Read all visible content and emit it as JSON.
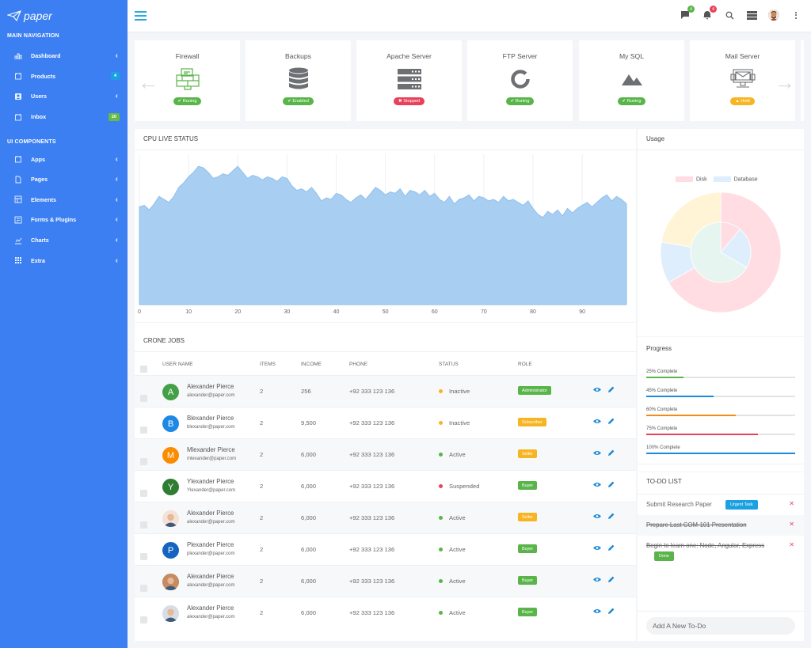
{
  "app": {
    "brand": "paper"
  },
  "sidebar": {
    "main_heading": "MAIN NAVIGATION",
    "main_items": [
      {
        "label": "Dashboard",
        "icon": "dashboard-icon"
      },
      {
        "label": "Products",
        "icon": "products-icon",
        "badge": "4"
      },
      {
        "label": "Users",
        "icon": "users-icon"
      },
      {
        "label": "Inbox",
        "icon": "inbox-icon",
        "badge": "20"
      }
    ],
    "ui_heading": "UI COMPONENTS",
    "ui_items": [
      {
        "label": "Apps",
        "icon": "apps-icon"
      },
      {
        "label": "Pages",
        "icon": "pages-icon"
      },
      {
        "label": "Elements",
        "icon": "elements-icon"
      },
      {
        "label": "Forms & Plugins",
        "icon": "forms-icon"
      },
      {
        "label": "Charts",
        "icon": "charts-icon"
      },
      {
        "label": "Extra",
        "icon": "extra-icon"
      }
    ]
  },
  "topbar": {
    "messages_count": "4",
    "notifications_count": "4"
  },
  "servers": [
    {
      "name": "Firewall",
      "status": "Runing",
      "status_color": "#59b549",
      "icon": "firewall-icon"
    },
    {
      "name": "Backups",
      "status": "Enabled",
      "status_color": "#59b549",
      "icon": "database-icon"
    },
    {
      "name": "Apache Server",
      "status": "Stopped",
      "status_color": "#e8425a",
      "icon": "server-icon"
    },
    {
      "name": "FTP Server",
      "status": "Runing",
      "status_color": "#59b549",
      "icon": "ring-icon"
    },
    {
      "name": "My SQL",
      "status": "Runing",
      "status_color": "#59b549",
      "icon": "mountain-icon"
    },
    {
      "name": "Mail Server",
      "status": "Hold",
      "status_color": "#f7b524",
      "icon": "mail-server-icon"
    }
  ],
  "cpu": {
    "title": "CPU LIVE STATUS"
  },
  "chart_data": [
    {
      "type": "area",
      "title": "CPU LIVE STATUS",
      "xlim": [
        0,
        99
      ],
      "xticks": [
        0,
        10,
        20,
        30,
        40,
        50,
        60,
        70,
        80,
        90
      ],
      "color": "#a8cff2",
      "x": [
        0,
        1,
        2,
        3,
        4,
        5,
        6,
        7,
        8,
        9,
        10,
        11,
        12,
        13,
        14,
        15,
        16,
        17,
        18,
        19,
        20,
        21,
        22,
        23,
        24,
        25,
        26,
        27,
        28,
        29,
        30,
        31,
        32,
        33,
        34,
        35,
        36,
        37,
        38,
        39,
        40,
        41,
        42,
        43,
        44,
        45,
        46,
        47,
        48,
        49,
        50,
        51,
        52,
        53,
        54,
        55,
        56,
        57,
        58,
        59,
        60,
        61,
        62,
        63,
        64,
        65,
        66,
        67,
        68,
        69,
        70,
        71,
        72,
        73,
        74,
        75,
        76,
        77,
        78,
        79,
        80,
        81,
        82,
        83,
        84,
        85,
        86,
        87,
        88,
        89,
        90,
        91,
        92,
        93,
        94,
        95,
        96,
        97,
        98,
        99
      ],
      "y": [
        65,
        66,
        63,
        67,
        72,
        70,
        68,
        72,
        78,
        81,
        85,
        88,
        92,
        91,
        88,
        84,
        85,
        87,
        86,
        89,
        92,
        88,
        84,
        86,
        85,
        83,
        85,
        84,
        82,
        85,
        84,
        79,
        76,
        77,
        75,
        78,
        74,
        69,
        71,
        70,
        74,
        73,
        70,
        68,
        71,
        73,
        70,
        74,
        78,
        76,
        73,
        75,
        74,
        77,
        72,
        76,
        75,
        73,
        76,
        72,
        74,
        70,
        68,
        72,
        67,
        70,
        71,
        73,
        69,
        72,
        71,
        69,
        70,
        68,
        72,
        69,
        70,
        68,
        66,
        69,
        64,
        60,
        58,
        62,
        60,
        63,
        59,
        64,
        61,
        64,
        66,
        68,
        65,
        68,
        71,
        73,
        69,
        72,
        70,
        67
      ]
    },
    {
      "type": "pie",
      "series": [
        {
          "name": "Disk",
          "values": [
            300,
            50,
            100
          ],
          "colors": [
            "#ffdde3",
            "#deeefc",
            "#fff5d6"
          ]
        },
        {
          "name": "Database",
          "values": [
            50,
            100,
            300
          ],
          "colors": [
            "#ffdde3",
            "#deeefc",
            "#e6f5ef"
          ]
        }
      ],
      "legend": "top"
    }
  ],
  "table": {
    "title": "CRONE JOBS",
    "columns": [
      "USER NAME",
      "ITEMS",
      "INCOME",
      "PHONE",
      "STATUS",
      "ROLE"
    ],
    "rows": [
      {
        "avatar": "A",
        "avatar_color": "#43a047",
        "name": "Alexander Pierce",
        "email": "alexander@paper.com",
        "items": "2",
        "income": "256",
        "phone": "+92 333 123 136",
        "status": "Inactive",
        "status_color": "#f7b524",
        "role": "Administrator",
        "role_color": "#59b549"
      },
      {
        "avatar": "B",
        "avatar_color": "#1e88e5",
        "name": "Blexander Pierce",
        "email": "blexander@paper.com",
        "items": "2",
        "income": "9,500",
        "phone": "+92 333 123 136",
        "status": "Inactive",
        "status_color": "#f7b524",
        "role": "Subscriber",
        "role_color": "#f7b524"
      },
      {
        "avatar": "M",
        "avatar_color": "#fb8c00",
        "name": "Mlexander Pierce",
        "email": "mlexander@paper.com",
        "items": "2",
        "income": "6,000",
        "phone": "+92 333 123 136",
        "status": "Active",
        "status_color": "#59b549",
        "role": "Seller",
        "role_color": "#f7b524"
      },
      {
        "avatar": "Y",
        "avatar_color": "#2e7d32",
        "name": "Ylexander Pierce",
        "email": "Ylexander@paper.com",
        "items": "2",
        "income": "6,000",
        "phone": "+92 333 123 136",
        "status": "Suspended",
        "status_color": "#e8425a",
        "role": "Buyer",
        "role_color": "#59b549"
      },
      {
        "avatar": "",
        "avatar_color": "#f4e2d8",
        "name": "Alexander Pierce",
        "email": "alexander@paper.com",
        "items": "2",
        "income": "6,000",
        "phone": "+92 333 123 136",
        "status": "Active",
        "status_color": "#59b549",
        "role": "Seller",
        "role_color": "#f7b524"
      },
      {
        "avatar": "P",
        "avatar_color": "#1565c0",
        "name": "Plexander Pierce",
        "email": "plexander@paper.com",
        "items": "2",
        "income": "6,000",
        "phone": "+92 333 123 136",
        "status": "Active",
        "status_color": "#59b549",
        "role": "Buyer",
        "role_color": "#59b549"
      },
      {
        "avatar": "",
        "avatar_color": "#c58b62",
        "name": "Alexander Pierce",
        "email": "alexander@paper.com",
        "items": "2",
        "income": "6,000",
        "phone": "+92 333 123 136",
        "status": "Active",
        "status_color": "#59b549",
        "role": "Buyer",
        "role_color": "#59b549"
      },
      {
        "avatar": "",
        "avatar_color": "#d7dde6",
        "name": "Alexander Pierce",
        "email": "alexander@paper.com",
        "items": "2",
        "income": "6,000",
        "phone": "+92 333 123 136",
        "status": "Active",
        "status_color": "#59b549",
        "role": "Buyer",
        "role_color": "#59b549"
      }
    ]
  },
  "usage": {
    "title": "Usage",
    "legend": [
      "Disk",
      "Database"
    ]
  },
  "progress": {
    "title": "Progress",
    "bars": [
      {
        "label": "25% Complete",
        "value": 0.25,
        "color": "#59b549"
      },
      {
        "label": "45% Complete",
        "value": 0.45,
        "color": "#1c8adb"
      },
      {
        "label": "60% Complete",
        "value": 0.6,
        "color": "#f08c1a"
      },
      {
        "label": "75% Complete",
        "value": 0.75,
        "color": "#e8425a"
      },
      {
        "label": "100% Complete",
        "value": 1.0,
        "color": "#1c8adb"
      }
    ]
  },
  "todo": {
    "title": "TO-DO LIST",
    "items": [
      {
        "text": "Submit Research Paper",
        "done": false,
        "tag": "Urgent Task",
        "tag_color": "#1ba1e2"
      },
      {
        "text": "Prepare Last COM-101 Presentation",
        "done": true
      },
      {
        "text": "Begin to learn one: Node, Angular, Express",
        "done": true,
        "tag": "Done",
        "tag_color": "#59b549"
      }
    ],
    "placeholder": "Add A New To-Do"
  }
}
